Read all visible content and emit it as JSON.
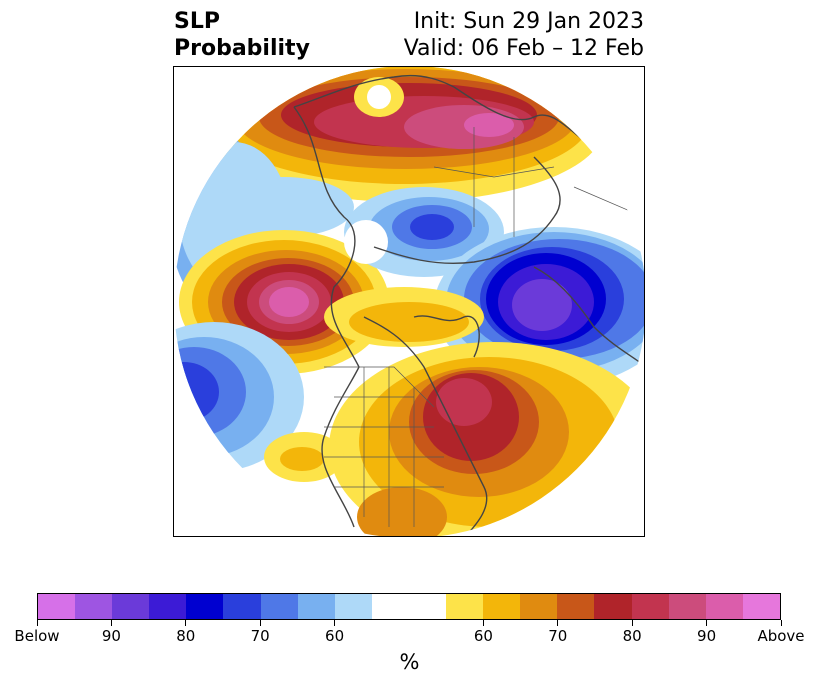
{
  "title": {
    "left_line1": "SLP",
    "left_line2": "Probability",
    "right_line1": "Init: Sun 29 Jan 2023",
    "right_line2": "Valid: 06 Feb – 12 Feb"
  },
  "colorbar": {
    "colors": [
      "#d670e8",
      "#9e55e2",
      "#6b3ad9",
      "#3c1bd6",
      "#0000d0",
      "#2a3fdc",
      "#4f78e7",
      "#78b0f0",
      "#aed9f8",
      "#ffffff",
      "#ffffff",
      "#fde349",
      "#f3b60a",
      "#e08b10",
      "#c85719",
      "#b0242a",
      "#c2344f",
      "#cc4c7c",
      "#db5dab",
      "#e677dc"
    ],
    "tick_labels": [
      "Below",
      "90",
      "80",
      "70",
      "60",
      "60",
      "70",
      "80",
      "90",
      "Above"
    ],
    "unit": "%"
  },
  "map": {
    "projection": "north polar stereographic",
    "variable": "sea level pressure tercile probability",
    "features": [
      {
        "name": "siberia-high",
        "category": "above",
        "level": "90"
      },
      {
        "name": "north-pacific-high",
        "category": "above",
        "level": "90+"
      },
      {
        "name": "eastern-canada-high",
        "category": "above",
        "level": "80-90"
      },
      {
        "name": "europe-low",
        "category": "below",
        "level": "90"
      },
      {
        "name": "beaufort-low",
        "category": "below",
        "level": "80"
      },
      {
        "name": "aleutian-low",
        "category": "below",
        "level": "70"
      }
    ]
  }
}
